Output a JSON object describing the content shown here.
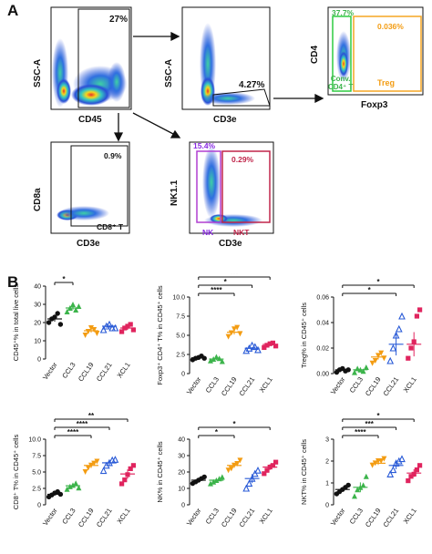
{
  "panel_a": {
    "letter": "A",
    "plot1": {
      "xlabel": "CD45",
      "ylabel": "SSC-A",
      "gate_pct": "27%"
    },
    "plot2": {
      "xlabel": "CD3e",
      "ylabel": "SSC-A",
      "gate_pct": "4.27%"
    },
    "plot3": {
      "xlabel": "Foxp3",
      "ylabel": "CD4",
      "left_pct": "37.7%",
      "right_pct": "0.036%",
      "left_name": "Conv.\nCD4⁺ T",
      "right_name": "Treg"
    },
    "plot4": {
      "xlabel": "CD3e",
      "ylabel": "CD8a",
      "gate_pct": "0.9%",
      "gate_name": "CD8⁺ T"
    },
    "plot5": {
      "xlabel": "CD3e",
      "ylabel": "NK1.1",
      "left_pct": "15.4%",
      "right_pct": "0.29%",
      "left_name": "NK",
      "right_name": "NKT"
    }
  },
  "panel_b": {
    "letter": "B"
  },
  "colors": {
    "black": "#111111",
    "green": "#3cb44b",
    "orange": "#f39c12",
    "purple": "#8a2be2",
    "blue": "#2a5bd7",
    "red": "#e0245e",
    "gate_green": "#2ecc40",
    "gate_orange": "#f5a623",
    "gate_purple": "#b03fd1",
    "gate_red": "#c0254a"
  },
  "chart_data": [
    {
      "type": "scatter",
      "id": "c1",
      "ylabel": "CD45⁺% in total live cells",
      "categories": [
        "Vector",
        "CCL3",
        "CCL19",
        "CCL21",
        "XCL1"
      ],
      "ylim": [
        0,
        40
      ],
      "yticks": [
        0,
        10,
        20,
        30,
        40
      ],
      "series": [
        [
          20,
          22,
          23,
          25,
          19
        ],
        [
          26,
          28,
          30,
          27,
          29
        ],
        [
          13,
          15,
          17,
          16,
          14
        ],
        [
          16,
          18,
          19,
          17,
          17
        ],
        [
          15,
          17,
          18,
          19,
          16
        ]
      ],
      "means": [
        22,
        28,
        15.5,
        18,
        17
      ],
      "sig": [
        {
          "from": 0,
          "to": 1,
          "label": "*"
        }
      ]
    },
    {
      "type": "scatter",
      "id": "c2",
      "ylabel": "Foxp3⁺ CD4⁺ T% in CD45⁺ cells",
      "categories": [
        "Vector",
        "CCL3",
        "CCL19",
        "CCL21",
        "XCL1"
      ],
      "ylim": [
        0,
        10
      ],
      "yticks": [
        0,
        2.5,
        5.0,
        7.5,
        10.0
      ],
      "ytick_labels": [
        "0",
        "2.5",
        "5.0",
        "7.5",
        "10.0"
      ],
      "series": [
        [
          1.8,
          2.0,
          2.1,
          2.3,
          2.0
        ],
        [
          1.7,
          1.9,
          2.2,
          2.0,
          1.6
        ],
        [
          4.8,
          5.3,
          5.8,
          6.0,
          5.2
        ],
        [
          3.0,
          3.3,
          3.7,
          3.5,
          3.1
        ],
        [
          3.4,
          3.7,
          3.9,
          4.0,
          3.6
        ]
      ],
      "means": [
        2.05,
        1.9,
        5.4,
        3.3,
        3.8
      ],
      "sig": [
        {
          "from": 0,
          "to": 2,
          "label": "****"
        },
        {
          "from": 0,
          "to": 3,
          "label": "*"
        },
        {
          "from": 0,
          "to": 4,
          "label": "***"
        }
      ]
    },
    {
      "type": "scatter",
      "id": "c3",
      "ylabel": "Treg% in CD45⁺ cells",
      "categories": [
        "Vector",
        "CCL3",
        "CCL19",
        "CCL21",
        "XCL1"
      ],
      "ylim": [
        0,
        0.06
      ],
      "yticks": [
        0,
        0.02,
        0.04,
        0.06
      ],
      "ytick_labels": [
        "0.00",
        "0.02",
        "0.04",
        "0.06"
      ],
      "series": [
        [
          0.001,
          0.003,
          0.004,
          0.002,
          0.003
        ],
        [
          0.001,
          0.004,
          0.003,
          0.002,
          0.005
        ],
        [
          0.008,
          0.01,
          0.014,
          0.016,
          0.012
        ],
        [
          0.01,
          0.02,
          0.03,
          0.035,
          0.045
        ],
        [
          0.012,
          0.02,
          0.025,
          0.045,
          0.05
        ]
      ],
      "means": [
        0.003,
        0.003,
        0.013,
        0.023,
        0.023
      ],
      "sig": [
        {
          "from": 0,
          "to": 3,
          "label": "*"
        },
        {
          "from": 0,
          "to": 4,
          "label": "*"
        }
      ]
    },
    {
      "type": "scatter",
      "id": "c4",
      "ylabel": "CD8⁺ T% in CD45⁺ cells",
      "categories": [
        "Vector",
        "CCL3",
        "CCL19",
        "CCL21",
        "XCL1"
      ],
      "ylim": [
        0,
        10
      ],
      "yticks": [
        0,
        2.5,
        5.0,
        7.5,
        10.0
      ],
      "ytick_labels": [
        "0",
        "2.5",
        "5.0",
        "7.5",
        "10.0"
      ],
      "series": [
        [
          1.2,
          1.5,
          1.8,
          2.0,
          1.6
        ],
        [
          2.4,
          2.8,
          3.0,
          3.3,
          2.6
        ],
        [
          5.0,
          5.6,
          6.0,
          6.3,
          6.6
        ],
        [
          5.2,
          6.0,
          6.4,
          6.8,
          6.9
        ],
        [
          3.2,
          3.8,
          4.6,
          5.5,
          6.0
        ]
      ],
      "means": [
        1.6,
        2.9,
        6.0,
        6.4,
        4.7
      ],
      "sig": [
        {
          "from": 0,
          "to": 2,
          "label": "****"
        },
        {
          "from": 0,
          "to": 3,
          "label": "****"
        },
        {
          "from": 0,
          "to": 4,
          "label": "**"
        }
      ]
    },
    {
      "type": "scatter",
      "id": "c5",
      "ylabel": "NK% in CD45⁺ cells",
      "categories": [
        "Vector",
        "CCL3",
        "CCL19",
        "CCL21",
        "XCL1"
      ],
      "ylim": [
        0,
        40
      ],
      "yticks": [
        0,
        10,
        20,
        30,
        40
      ],
      "series": [
        [
          13,
          14,
          15,
          16,
          17
        ],
        [
          13,
          14,
          15,
          16,
          17
        ],
        [
          21,
          22,
          24,
          25,
          27
        ],
        [
          10,
          13,
          16,
          19,
          21
        ],
        [
          19,
          21,
          23,
          24,
          26
        ]
      ],
      "means": [
        15,
        15,
        24,
        16,
        23
      ],
      "sig": [
        {
          "from": 0,
          "to": 2,
          "label": "*"
        },
        {
          "from": 0,
          "to": 4,
          "label": "*"
        }
      ]
    },
    {
      "type": "scatter",
      "id": "c6",
      "ylabel": "NKT% in CD45⁺ cells",
      "categories": [
        "Vector",
        "CCL3",
        "CCL19",
        "CCL21",
        "XCL1"
      ],
      "ylim": [
        0,
        3
      ],
      "yticks": [
        0,
        1,
        2,
        3
      ],
      "series": [
        [
          0.5,
          0.6,
          0.7,
          0.8,
          0.9
        ],
        [
          0.4,
          0.7,
          0.8,
          0.9,
          1.3
        ],
        [
          1.8,
          1.9,
          2.0,
          2.0,
          2.1
        ],
        [
          1.4,
          1.6,
          1.9,
          2.0,
          2.1
        ],
        [
          1.1,
          1.3,
          1.4,
          1.6,
          1.8
        ]
      ],
      "means": [
        0.7,
        0.8,
        1.9,
        1.8,
        1.45
      ],
      "sig": [
        {
          "from": 0,
          "to": 2,
          "label": "****"
        },
        {
          "from": 0,
          "to": 3,
          "label": "***"
        },
        {
          "from": 0,
          "to": 4,
          "label": "*"
        }
      ]
    }
  ]
}
